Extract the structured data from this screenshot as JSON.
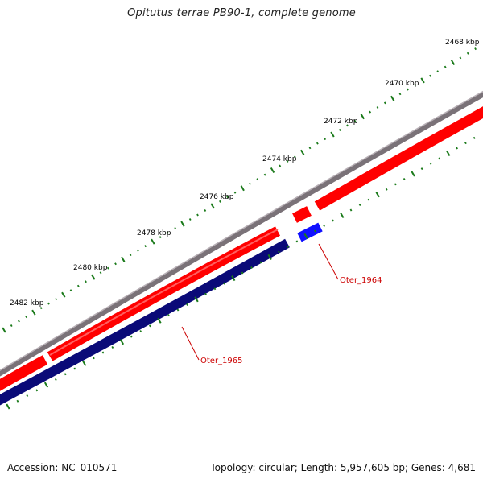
{
  "title": "Opitutus terrae PB90-1, complete genome",
  "footer": {
    "accession": "Accession: NC_010571",
    "summary": "Topology: circular; Length: 5,957,605 bp; Genes: 4,681"
  },
  "ticks": [
    {
      "label": "2468 kbp"
    },
    {
      "label": "2470 kbp"
    },
    {
      "label": "2472 kbp"
    },
    {
      "label": "2474 kbp"
    },
    {
      "label": "2476 kbp"
    },
    {
      "label": "2478 kbp"
    },
    {
      "label": "2480 kbp"
    },
    {
      "label": "2482 kbp"
    }
  ],
  "gene_labels": [
    {
      "name": "Oter_1964"
    },
    {
      "name": "Oter_1965"
    }
  ],
  "colors": {
    "backbone": "#7a7278",
    "forward_cds": "#ff0000",
    "reverse_cds": "#0a0a78",
    "reverse_cds_highlight": "#1010ff",
    "tick": "#1a7a1a",
    "label_line": "#cc0000"
  }
}
